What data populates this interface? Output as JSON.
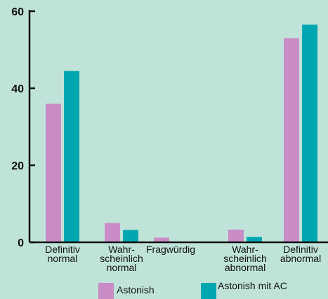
{
  "chart_data": {
    "type": "bar",
    "categories": [
      [
        "Definitiv",
        "normal"
      ],
      [
        "Wahr-",
        "scheinlich",
        "normal"
      ],
      [
        "Fragwürdig"
      ],
      [
        "Wahr-",
        "scheinlich",
        "abnormal"
      ],
      [
        "Definitiv",
        "abnormal"
      ]
    ],
    "series": [
      {
        "name": "Astonish",
        "values": [
          36,
          5,
          1.2,
          3.3,
          53
        ]
      },
      {
        "name": "Astonish mit AC",
        "values": [
          44.5,
          3.2,
          0,
          1.4,
          56.5
        ]
      }
    ],
    "yticks": [
      "0",
      "20",
      "40",
      "60"
    ],
    "ylim": [
      0,
      60
    ],
    "colors": [
      "#c98cc6",
      "#00a7b1"
    ],
    "legend_position": "bottom",
    "grid": false
  }
}
